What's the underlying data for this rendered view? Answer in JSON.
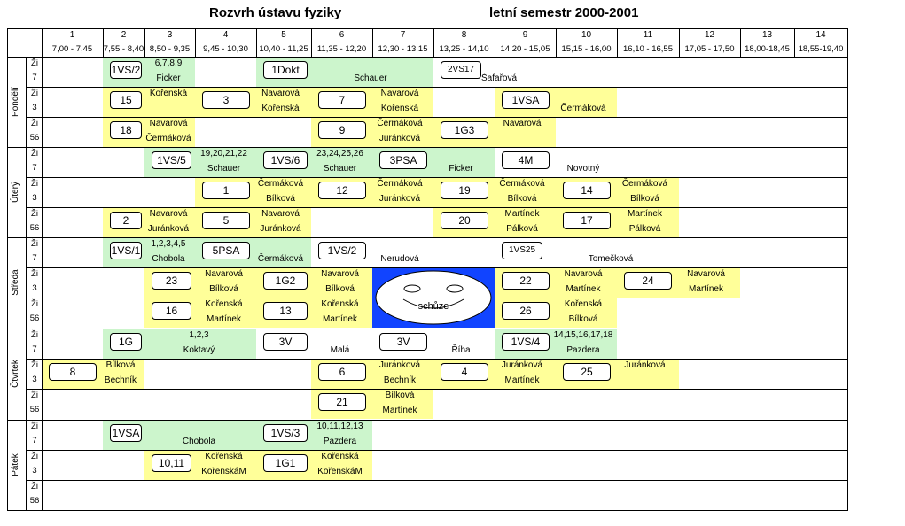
{
  "header": {
    "title": "Rozvrh ústavu fyziky",
    "semester": "letní semestr 2000-2001"
  },
  "colors": {
    "green": "#ccf5cc",
    "yellow": "#ffff99",
    "blue": "#1144ff",
    "white": "#ffffff"
  },
  "columns": [
    {
      "num": "1",
      "time": "7,00 - 7,45"
    },
    {
      "num": "2",
      "time": "7,55 - 8,40"
    },
    {
      "num": "3",
      "time": "8,50 - 9,35"
    },
    {
      "num": "4",
      "time": "9,45 - 10,30"
    },
    {
      "num": "5",
      "time": "10,40 - 11,25"
    },
    {
      "num": "6",
      "time": "11,35 - 12,20"
    },
    {
      "num": "7",
      "time": "12,30 - 13,15"
    },
    {
      "num": "8",
      "time": "13,25 - 14,10"
    },
    {
      "num": "9",
      "time": "14,20 - 15,05"
    },
    {
      "num": "10",
      "time": "15,15 - 16,00"
    },
    {
      "num": "11",
      "time": "16,10 - 16,55"
    },
    {
      "num": "12",
      "time": "17,05 - 17,50"
    },
    {
      "num": "13",
      "time": "18,00-18,45"
    },
    {
      "num": "14",
      "time": "18,55-19,40"
    }
  ],
  "days": [
    "Pondělí",
    "Úterý",
    "Středa",
    "Čtvrtek",
    "Pátek"
  ],
  "rooms": [
    [
      "Ži",
      "7"
    ],
    [
      "Ži",
      "3"
    ],
    [
      "Ži",
      "56"
    ]
  ],
  "events": [
    {
      "day": 0,
      "room": 0,
      "start": 2,
      "end": 3,
      "color": "green",
      "code": "1VS/2",
      "note_top": "6,7,8,9",
      "note_bottom": "Ficker"
    },
    {
      "day": 0,
      "room": 0,
      "start": 5,
      "end": 7,
      "color": "green",
      "code": "1Dokt",
      "note_top": "",
      "note_bottom": "Schauer"
    },
    {
      "day": 0,
      "room": 0,
      "start": 8,
      "end": 8,
      "color": "white",
      "code": "2VS17",
      "note_top": "",
      "note_bottom": "Šafařová",
      "small": true
    },
    {
      "day": 0,
      "room": 1,
      "start": 2,
      "end": 3,
      "color": "yellow",
      "code": "15",
      "note_top": "Kořenská",
      "note_bottom": ""
    },
    {
      "day": 0,
      "room": 1,
      "start": 4,
      "end": 5,
      "color": "yellow",
      "code": "3",
      "note_top": "Navarová",
      "note_bottom": "Kořenská"
    },
    {
      "day": 0,
      "room": 1,
      "start": 6,
      "end": 7,
      "color": "yellow",
      "code": "7",
      "note_top": "Navarová",
      "note_bottom": "Kořenská"
    },
    {
      "day": 0,
      "room": 1,
      "start": 9,
      "end": 10,
      "color": "yellow",
      "code": "1VSA",
      "note_top": "",
      "note_bottom": "Čermáková"
    },
    {
      "day": 0,
      "room": 2,
      "start": 2,
      "end": 3,
      "color": "yellow",
      "code": "18",
      "note_top": "Navarová",
      "note_bottom": "Čermáková"
    },
    {
      "day": 0,
      "room": 2,
      "start": 6,
      "end": 7,
      "color": "yellow",
      "code": "9",
      "note_top": "Čermáková",
      "note_bottom": "Juránková"
    },
    {
      "day": 0,
      "room": 2,
      "start": 8,
      "end": 9,
      "color": "yellow",
      "code": "1G3",
      "note_top": "Navarová",
      "note_bottom": ""
    },
    {
      "day": 1,
      "room": 0,
      "start": 3,
      "end": 4,
      "color": "green",
      "code": "1VS/5",
      "note_top": "19,20,21,22",
      "note_bottom": "Schauer"
    },
    {
      "day": 1,
      "room": 0,
      "start": 5,
      "end": 6,
      "color": "green",
      "code": "1VS/6",
      "note_top": "23,24,25,26",
      "note_bottom": "Schauer"
    },
    {
      "day": 1,
      "room": 0,
      "start": 7,
      "end": 8,
      "color": "green",
      "code": "3PSA",
      "note_top": "",
      "note_bottom": "Ficker"
    },
    {
      "day": 1,
      "room": 0,
      "start": 9,
      "end": 10,
      "color": "white",
      "code": "4M",
      "note_top": "",
      "note_bottom": "Novotný"
    },
    {
      "day": 1,
      "room": 1,
      "start": 4,
      "end": 5,
      "color": "yellow",
      "code": "1",
      "note_top": "Čermáková",
      "note_bottom": "Bílková"
    },
    {
      "day": 1,
      "room": 1,
      "start": 6,
      "end": 7,
      "color": "yellow",
      "code": "12",
      "note_top": "Čermáková",
      "note_bottom": "Juránková"
    },
    {
      "day": 1,
      "room": 1,
      "start": 8,
      "end": 9,
      "color": "yellow",
      "code": "19",
      "note_top": "Čermáková",
      "note_bottom": "Bílková"
    },
    {
      "day": 1,
      "room": 1,
      "start": 10,
      "end": 11,
      "color": "yellow",
      "code": "14",
      "note_top": "Čermáková",
      "note_bottom": "Bílková"
    },
    {
      "day": 1,
      "room": 2,
      "start": 2,
      "end": 3,
      "color": "yellow",
      "code": "2",
      "note_top": "Navarová",
      "note_bottom": "Juránková"
    },
    {
      "day": 1,
      "room": 2,
      "start": 4,
      "end": 5,
      "color": "yellow",
      "code": "5",
      "note_top": "Navarová",
      "note_bottom": "Juránková"
    },
    {
      "day": 1,
      "room": 2,
      "start": 8,
      "end": 9,
      "color": "yellow",
      "code": "20",
      "note_top": "Martínek",
      "note_bottom": "Pálková"
    },
    {
      "day": 1,
      "room": 2,
      "start": 10,
      "end": 11,
      "color": "yellow",
      "code": "17",
      "note_top": "Martínek",
      "note_bottom": "Pálková"
    },
    {
      "day": 2,
      "room": 0,
      "start": 2,
      "end": 3,
      "color": "green",
      "code": "1VS/1",
      "note_top": "1,2,3,4,5",
      "note_bottom": "Chobola"
    },
    {
      "day": 2,
      "room": 0,
      "start": 4,
      "end": 5,
      "color": "green",
      "code": "5PSA",
      "note_top": "",
      "note_bottom": "Čermáková"
    },
    {
      "day": 2,
      "room": 0,
      "start": 6,
      "end": 7,
      "color": "white",
      "code": "1VS/2",
      "note_top": "",
      "note_bottom": "Nerudová"
    },
    {
      "day": 2,
      "room": 0,
      "start": 9,
      "end": 11,
      "color": "white",
      "code": "1VS25",
      "note_top": "",
      "note_bottom": "Tomečková",
      "small": true
    },
    {
      "day": 2,
      "room": 1,
      "start": 3,
      "end": 4,
      "color": "yellow",
      "code": "23",
      "note_top": "Navarová",
      "note_bottom": "Bílková"
    },
    {
      "day": 2,
      "room": 1,
      "start": 5,
      "end": 6,
      "color": "yellow",
      "code": "1G2",
      "note_top": "Navarová",
      "note_bottom": "Bílková"
    },
    {
      "day": 2,
      "room": 1,
      "start": 9,
      "end": 10,
      "color": "yellow",
      "code": "22",
      "note_top": "Navarová",
      "note_bottom": "Martínek"
    },
    {
      "day": 2,
      "room": 1,
      "start": 11,
      "end": 12,
      "color": "yellow",
      "code": "24",
      "note_top": "Navarová",
      "note_bottom": "Martínek"
    },
    {
      "day": 2,
      "room": 2,
      "start": 3,
      "end": 4,
      "color": "yellow",
      "code": "16",
      "note_top": "Kořenská",
      "note_bottom": "Martínek"
    },
    {
      "day": 2,
      "room": 2,
      "start": 5,
      "end": 6,
      "color": "yellow",
      "code": "13",
      "note_top": "Kořenská",
      "note_bottom": "Martínek"
    },
    {
      "day": 2,
      "room": 2,
      "start": 9,
      "end": 10,
      "color": "yellow",
      "code": "26",
      "note_top": "Kořenská",
      "note_bottom": "Bílková"
    },
    {
      "day": 3,
      "room": 0,
      "start": 2,
      "end": 4,
      "color": "green",
      "code": "1G",
      "note_top": "1,2,3",
      "note_bottom": "Koktavý"
    },
    {
      "day": 3,
      "room": 0,
      "start": 5,
      "end": 6,
      "color": "white",
      "code": "3V",
      "note_top": "",
      "note_bottom": "Malá"
    },
    {
      "day": 3,
      "room": 0,
      "start": 7,
      "end": 8,
      "color": "white",
      "code": "3V",
      "note_top": "",
      "note_bottom": "Říha"
    },
    {
      "day": 3,
      "room": 0,
      "start": 9,
      "end": 10,
      "color": "green",
      "code": "1VS/4",
      "note_top": "14,15,16,17,18",
      "note_bottom": "Pazdera"
    },
    {
      "day": 3,
      "room": 1,
      "start": 1,
      "end": 2,
      "color": "yellow",
      "code": "8",
      "note_top": "Bílková",
      "note_bottom": "Bechník"
    },
    {
      "day": 3,
      "room": 1,
      "start": 6,
      "end": 7,
      "color": "yellow",
      "code": "6",
      "note_top": "Juránková",
      "note_bottom": "Bechník"
    },
    {
      "day": 3,
      "room": 1,
      "start": 8,
      "end": 9,
      "color": "yellow",
      "code": "4",
      "note_top": "Juránková",
      "note_bottom": "Martínek"
    },
    {
      "day": 3,
      "room": 1,
      "start": 10,
      "end": 11,
      "color": "yellow",
      "code": "25",
      "note_top": "Juránková",
      "note_bottom": ""
    },
    {
      "day": 3,
      "room": 2,
      "start": 6,
      "end": 7,
      "color": "yellow",
      "code": "21",
      "note_top": "Bílková",
      "note_bottom": "Martínek"
    },
    {
      "day": 4,
      "room": 0,
      "start": 2,
      "end": 4,
      "color": "green",
      "code": "1VSA",
      "note_top": "",
      "note_bottom": "Chobola"
    },
    {
      "day": 4,
      "room": 0,
      "start": 5,
      "end": 6,
      "color": "green",
      "code": "1VS/3",
      "note_top": "10,11,12,13",
      "note_bottom": "Pazdera"
    },
    {
      "day": 4,
      "room": 1,
      "start": 3,
      "end": 4,
      "color": "yellow",
      "code": "10,11",
      "note_top": "Kořenská",
      "note_bottom": "KořenskáM"
    },
    {
      "day": 4,
      "room": 1,
      "start": 5,
      "end": 6,
      "color": "yellow",
      "code": "1G1",
      "note_top": "Kořenská",
      "note_bottom": "KořenskáM"
    }
  ],
  "meeting": {
    "day": 2,
    "rooms": [
      1,
      2
    ],
    "start": 7,
    "end": 8,
    "label": "schůze"
  }
}
